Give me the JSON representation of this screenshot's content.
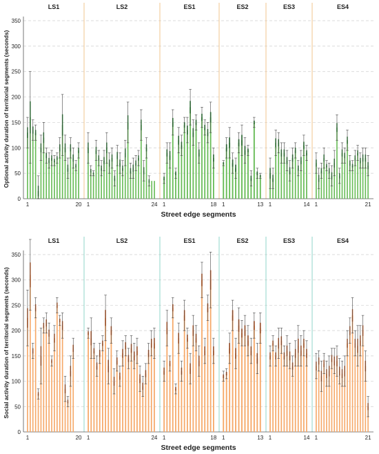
{
  "chart_data": [
    {
      "type": "bar",
      "ylabel": "Optional activity duration of territorial segments (seconds)",
      "xlabel": "Street edge segments",
      "ylim": [
        0,
        350
      ],
      "yticks": [
        0,
        50,
        100,
        150,
        200,
        250,
        300,
        350
      ],
      "grid": "horizontal dashed",
      "bar_color": "#66bb55",
      "mean_color": "#1e7a2a",
      "error_color": "#444444",
      "separator_color": "#f2c48c",
      "groups": [
        {
          "name": "LS1",
          "first_label": "1",
          "last_label": "20",
          "values": [
            130,
            160,
            135,
            130,
            15,
            100,
            120,
            85,
            75,
            80,
            75,
            80,
            100,
            145,
            100,
            60,
            100,
            80,
            65,
            95
          ],
          "errors": [
            30,
            90,
            20,
            15,
            30,
            25,
            30,
            15,
            15,
            15,
            10,
            10,
            20,
            60,
            25,
            20,
            20,
            20,
            10,
            15
          ]
        },
        {
          "name": "LS2",
          "first_label": "1",
          "last_label": "24",
          "values": [
            100,
            55,
            50,
            95,
            80,
            60,
            75,
            100,
            70,
            80,
            40,
            85,
            70,
            60,
            90,
            150,
            55,
            60,
            70,
            80,
            145,
            55,
            100,
            35
          ],
          "errors": [
            30,
            10,
            5,
            20,
            15,
            15,
            20,
            30,
            20,
            20,
            15,
            20,
            20,
            15,
            25,
            40,
            15,
            20,
            15,
            15,
            30,
            20,
            20,
            10
          ],
          "extra_bars": 2
        },
        {
          "name": "ES1",
          "first_label": "1",
          "last_label": "18",
          "values": [
            40,
            90,
            85,
            150,
            50,
            115,
            105,
            145,
            135,
            180,
            130,
            150,
            90,
            160,
            140,
            130,
            160,
            80
          ],
          "errors": [
            10,
            20,
            25,
            25,
            10,
            25,
            20,
            15,
            25,
            35,
            25,
            15,
            20,
            20,
            15,
            20,
            30,
            20
          ]
        },
        {
          "name": "ES2",
          "first_label": "1",
          "last_label": "13",
          "values": [
            70,
            100,
            110,
            70,
            60,
            110,
            115,
            95,
            95,
            40,
            150,
            50,
            45
          ],
          "errors": [
            5,
            20,
            30,
            20,
            20,
            20,
            30,
            25,
            10,
            15,
            10,
            10,
            5
          ]
        },
        {
          "name": "ES3",
          "first_label": "1",
          "last_label": "14",
          "values": [
            50,
            40,
            110,
            110,
            90,
            90,
            75,
            55,
            80,
            95,
            60,
            75,
            105,
            90
          ],
          "errors": [
            30,
            20,
            25,
            20,
            20,
            20,
            20,
            20,
            20,
            15,
            15,
            20,
            20,
            15
          ]
        },
        {
          "name": "ES4",
          "first_label": "1",
          "last_label": "21",
          "values": [
            70,
            40,
            55,
            80,
            65,
            55,
            45,
            70,
            140,
            45,
            90,
            85,
            115,
            70,
            65,
            80,
            90,
            75,
            80,
            80,
            65
          ],
          "errors": [
            20,
            20,
            15,
            20,
            10,
            15,
            20,
            25,
            25,
            15,
            20,
            15,
            20,
            15,
            10,
            15,
            15,
            15,
            20,
            20,
            20
          ]
        }
      ]
    },
    {
      "type": "bar",
      "ylabel": "Social activity duration of territorial segments (seconds)",
      "xlabel": "Street edge segments",
      "ylim": [
        0,
        350
      ],
      "yticks": [
        0,
        50,
        100,
        150,
        200,
        250,
        300,
        350
      ],
      "grid": "horizontal dashed",
      "bar_color": "#f6a868",
      "mean_color": "#c4571e",
      "error_color": "#444444",
      "separator_color": "#8fd4c8",
      "groups": [
        {
          "name": "LS1",
          "first_label": "1",
          "last_label": "20",
          "values": [
            225,
            310,
            160,
            245,
            75,
            150,
            210,
            215,
            195,
            140,
            185,
            250,
            220,
            210,
            85,
            60,
            120,
            165,
            0,
            0
          ],
          "errors": [
            55,
            70,
            15,
            20,
            10,
            55,
            15,
            20,
            20,
            10,
            25,
            15,
            10,
            25,
            25,
            10,
            30,
            20,
            0,
            0
          ]
        },
        {
          "name": "LS2",
          "first_label": "1",
          "last_label": "24",
          "values": [
            195,
            185,
            160,
            130,
            155,
            175,
            225,
            130,
            200,
            100,
            140,
            110,
            155,
            170,
            145,
            165,
            150,
            160,
            105,
            90,
            115,
            155,
            175,
            175
          ],
          "errors": [
            10,
            40,
            15,
            20,
            20,
            15,
            45,
            35,
            25,
            25,
            20,
            20,
            25,
            20,
            20,
            25,
            25,
            25,
            25,
            20,
            20,
            20,
            25,
            30
          ]
        },
        {
          "name": "ES1",
          "first_label": "1",
          "last_label": "18",
          "values": [
            120,
            205,
            135,
            245,
            85,
            185,
            120,
            230,
            185,
            125,
            200,
            185,
            140,
            300,
            160,
            245,
            300,
            160
          ],
          "errors": [
            20,
            35,
            15,
            20,
            10,
            30,
            20,
            30,
            20,
            30,
            30,
            25,
            30,
            35,
            25,
            25,
            55,
            25
          ]
        },
        {
          "name": "ES2",
          "first_label": "1",
          "last_label": "13",
          "values": [
            110,
            115,
            165,
            230,
            155,
            210,
            195,
            200,
            180,
            160,
            210,
            145,
            205
          ],
          "errors": [
            10,
            10,
            30,
            30,
            30,
            35,
            25,
            30,
            30,
            25,
            25,
            30,
            30
          ]
        },
        {
          "name": "ES3",
          "first_label": "1",
          "last_label": "14",
          "values": [
            150,
            175,
            150,
            175,
            180,
            150,
            160,
            150,
            130,
            155,
            170,
            160,
            175,
            155
          ],
          "errors": [
            20,
            15,
            20,
            30,
            25,
            20,
            30,
            25,
            20,
            25,
            40,
            30,
            25,
            25
          ]
        },
        {
          "name": "ES4",
          "first_label": "1",
          "last_label": "21",
          "values": [
            130,
            140,
            110,
            135,
            115,
            120,
            145,
            140,
            140,
            120,
            115,
            120,
            175,
            200,
            230,
            175,
            170,
            180,
            200,
            130,
            50
          ],
          "errors": [
            25,
            20,
            30,
            20,
            25,
            30,
            20,
            25,
            30,
            25,
            25,
            30,
            25,
            25,
            35,
            25,
            40,
            30,
            30,
            30,
            20
          ]
        }
      ]
    }
  ]
}
